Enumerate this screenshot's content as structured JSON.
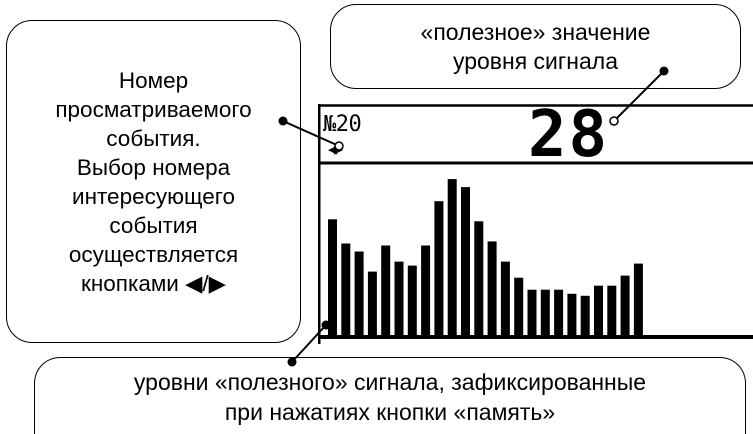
{
  "left_callout": {
    "lines": [
      "Номер",
      "просматриваемого",
      "события.",
      "Выбор номера",
      "интересующего",
      "события",
      "осуществляется",
      "кнопками ◀/▶"
    ]
  },
  "top_callout": {
    "lines": [
      "«полезное» значение",
      "уровня сигнала"
    ]
  },
  "bottom_callout": {
    "lines": [
      "уровни «полезного» сигнала, зафиксированные",
      "при нажатиях кнопки «память»"
    ]
  },
  "display": {
    "event_number": "№20",
    "signal_value": "28",
    "nav_icon": "◀▶"
  },
  "chart_data": {
    "type": "bar",
    "values": [
      116,
      92,
      84,
      64,
      90,
      74,
      70,
      90,
      134,
      156,
      148,
      114,
      94,
      74,
      58,
      46,
      46,
      46,
      42,
      40,
      50,
      50,
      60,
      72
    ],
    "ylim": [
      0,
      170
    ],
    "bar_color": "#000000"
  }
}
